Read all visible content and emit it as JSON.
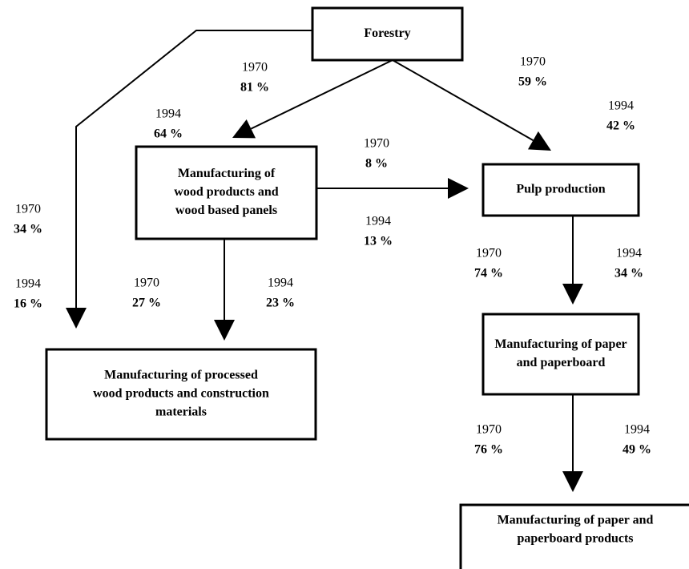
{
  "nodes": [
    {
      "id": "forestry",
      "lines": [
        "Forestry"
      ]
    },
    {
      "id": "wood",
      "lines": [
        "Manufacturing of",
        "wood products and",
        "wood based panels"
      ]
    },
    {
      "id": "pulp",
      "lines": [
        "Pulp production"
      ]
    },
    {
      "id": "processed",
      "lines": [
        "Manufacturing of processed",
        "wood products and construction",
        "materials"
      ]
    },
    {
      "id": "paper",
      "lines": [
        "Manufacturing of paper",
        "and paperboard"
      ]
    },
    {
      "id": "products",
      "lines": [
        "Manufacturing of paper and",
        "paperboard products"
      ]
    }
  ],
  "edges": [
    {
      "from": "forestry",
      "to": "wood",
      "labels": [
        {
          "year": "1970",
          "share": "81 %"
        },
        {
          "year": "1994",
          "share": "64 %"
        }
      ]
    },
    {
      "from": "forestry",
      "to": "pulp",
      "labels": [
        {
          "year": "1970",
          "share": "59 %"
        },
        {
          "year": "1994",
          "share": "42 %"
        }
      ]
    },
    {
      "from": "forestry",
      "to": "processed",
      "labels": [
        {
          "year": "1970",
          "share": "34 %"
        },
        {
          "year": "1994",
          "share": "16 %"
        }
      ]
    },
    {
      "from": "wood",
      "to": "pulp",
      "labels": [
        {
          "year": "1970",
          "share": "8 %"
        },
        {
          "year": "1994",
          "share": "13 %"
        }
      ]
    },
    {
      "from": "wood",
      "to": "processed",
      "labels": [
        {
          "year": "1970",
          "share": "27 %"
        },
        {
          "year": "1994",
          "share": "23 %"
        }
      ]
    },
    {
      "from": "pulp",
      "to": "paper",
      "labels": [
        {
          "year": "1970",
          "share": "74 %"
        },
        {
          "year": "1994",
          "share": "34 %"
        }
      ]
    },
    {
      "from": "paper",
      "to": "products",
      "labels": [
        {
          "year": "1970",
          "share": "76 %"
        },
        {
          "year": "1994",
          "share": "49 %"
        }
      ]
    }
  ]
}
